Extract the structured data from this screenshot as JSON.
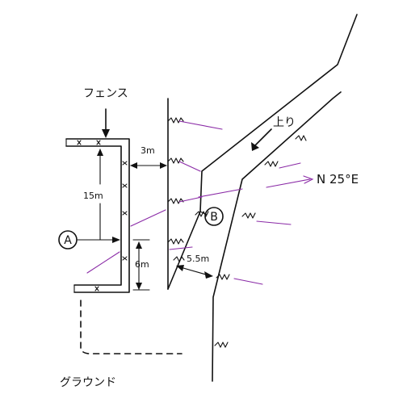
{
  "labels": {
    "fence": "フェンス",
    "ground": "グラウンド",
    "point_a": "A",
    "point_b": "B",
    "up_slope": "上り",
    "bearing": "N 25°E",
    "dim_15m": "15m",
    "dim_3m": "3m",
    "dim_6m": "6m",
    "dim_5_5m": "5.5m"
  },
  "colors": {
    "ink": "#111111",
    "annotation": "#8a2aa6",
    "background": "#ffffff"
  }
}
